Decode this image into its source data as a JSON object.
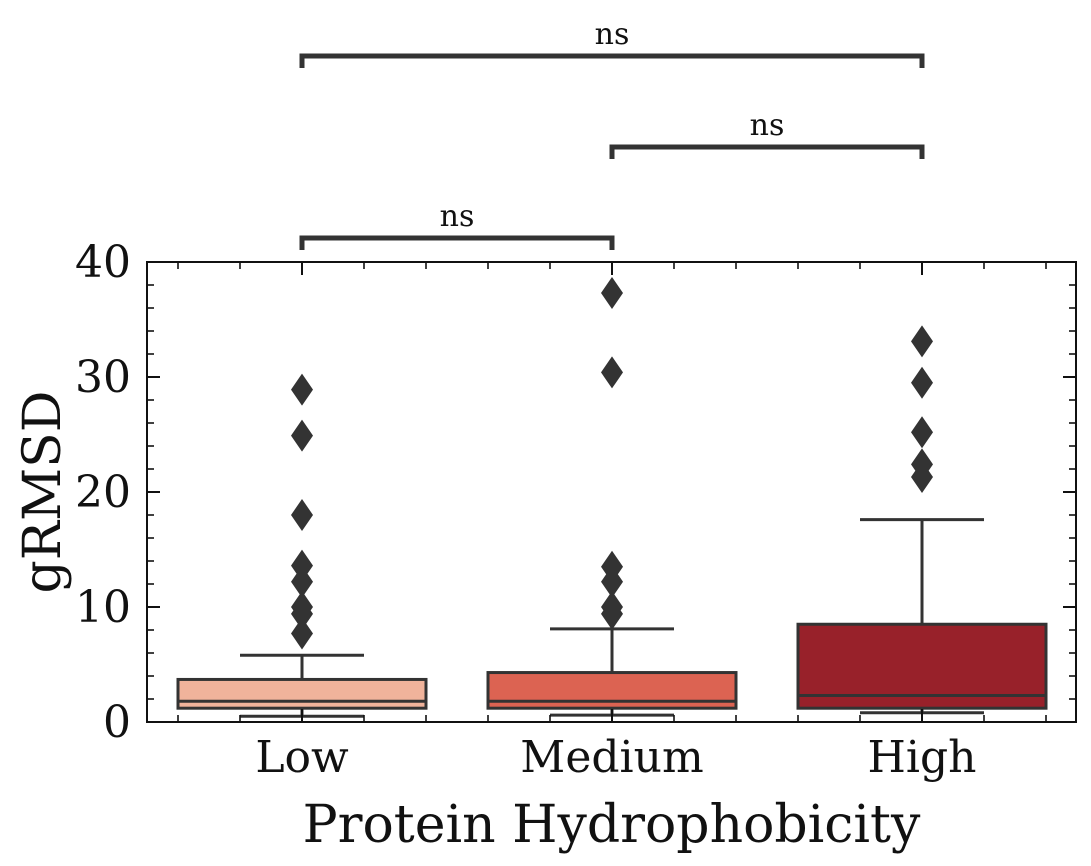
{
  "chart_data": {
    "type": "box",
    "xlabel": "Protein Hydrophobicity",
    "ylabel": "gRMSD",
    "ylim": [
      0,
      40
    ],
    "yticks": [
      0,
      10,
      20,
      30,
      40
    ],
    "categories": [
      "Low",
      "Medium",
      "High"
    ],
    "boxes": [
      {
        "category": "Low",
        "color": "#f0b39b",
        "whisker_low": 0.5,
        "q1": 1.2,
        "median": 1.8,
        "q3": 3.7,
        "whisker_high": 5.8,
        "outliers": [
          7.7,
          9.4,
          10.0,
          12.2,
          13.6,
          18.0,
          24.9,
          28.9
        ]
      },
      {
        "category": "Medium",
        "color": "#dc6352",
        "whisker_low": 0.6,
        "q1": 1.2,
        "median": 1.8,
        "q3": 4.3,
        "whisker_high": 8.1,
        "outliers": [
          9.4,
          10.0,
          12.2,
          13.5,
          30.4,
          37.3
        ]
      },
      {
        "category": "High",
        "color": "#98212a",
        "whisker_low": 0.8,
        "q1": 1.2,
        "median": 2.3,
        "q3": 8.5,
        "whisker_high": 17.6,
        "outliers": [
          21.3,
          22.4,
          25.2,
          29.5,
          33.1
        ]
      }
    ],
    "annotations": [
      {
        "from": "Low",
        "to": "Medium",
        "text": "ns",
        "level": 1
      },
      {
        "from": "Medium",
        "to": "High",
        "text": "ns",
        "level": 2
      },
      {
        "from": "Low",
        "to": "High",
        "text": "ns",
        "level": 3
      }
    ],
    "grid": false,
    "legend": "none"
  },
  "colors": {
    "box_edge": "#333333",
    "axis": "#111111"
  }
}
